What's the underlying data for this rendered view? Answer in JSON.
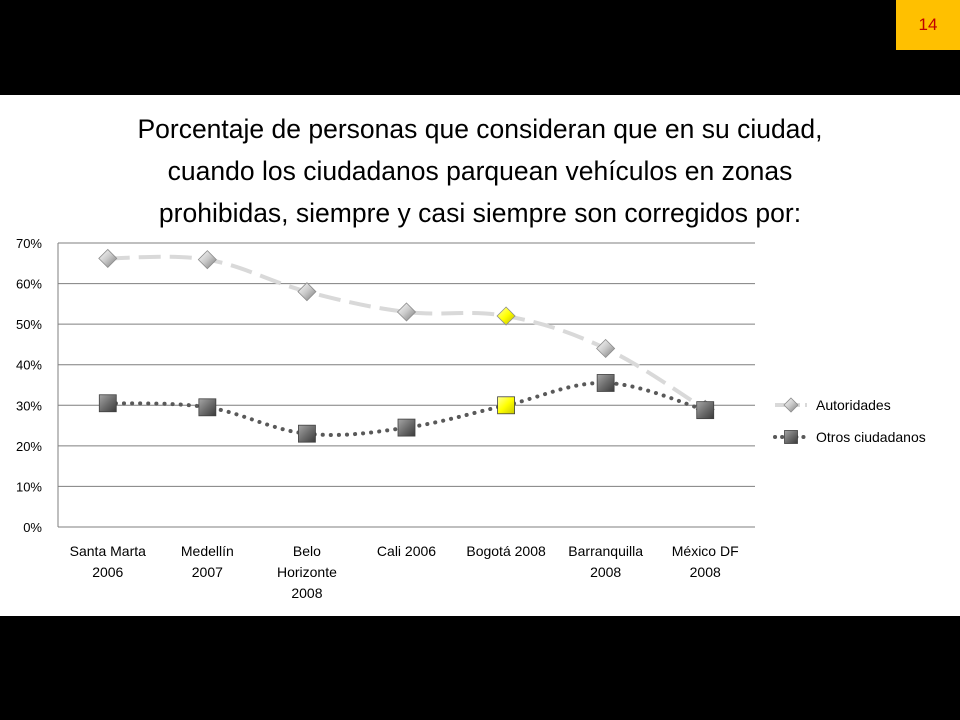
{
  "slide": {
    "page_number": "14",
    "title_lines": [
      "Porcentaje de personas que consideran que en su ciudad,",
      "cuando los ciudadanos parquean vehículos en zonas",
      "prohibidas, siempre y casi siempre son corregidos por:"
    ]
  },
  "colors": {
    "background": "#000000",
    "slide": "#FFFFFF",
    "page_badge": "#FFC000",
    "page_number_text": "#C00000",
    "series_autoridades": "#D9D9D9",
    "series_otros": "#595959",
    "highlight": "#FFFF00",
    "gridline": "#7F7F7F"
  },
  "chart_data": {
    "type": "line",
    "title": "",
    "xlabel": "",
    "ylabel": "",
    "categories": [
      [
        "Santa Marta",
        "2006"
      ],
      [
        "Medellín",
        "2007"
      ],
      [
        "Belo",
        "Horizonte",
        "2008"
      ],
      [
        "Cali 2006"
      ],
      [
        "Bogotá 2008"
      ],
      [
        "Barranquilla",
        "2008"
      ],
      [
        "México DF",
        "2008"
      ]
    ],
    "y_ticks": [
      "0%",
      "10%",
      "20%",
      "30%",
      "40%",
      "50%",
      "60%",
      "70%"
    ],
    "ylim": [
      0,
      70
    ],
    "y_unit": "%",
    "grid": true,
    "legend_position": "right",
    "highlight_category_index": 4,
    "series": [
      {
        "name": "Autoridades",
        "style": "dashed",
        "marker": "diamond",
        "color": "#D9D9D9",
        "values": [
          66.2,
          65.9,
          58,
          53,
          52,
          44,
          29
        ]
      },
      {
        "name": "Otros ciudadanos",
        "style": "dotted",
        "marker": "square",
        "color": "#595959",
        "values": [
          30.5,
          29.5,
          23,
          24.5,
          30,
          35.5,
          28.8
        ]
      }
    ]
  }
}
